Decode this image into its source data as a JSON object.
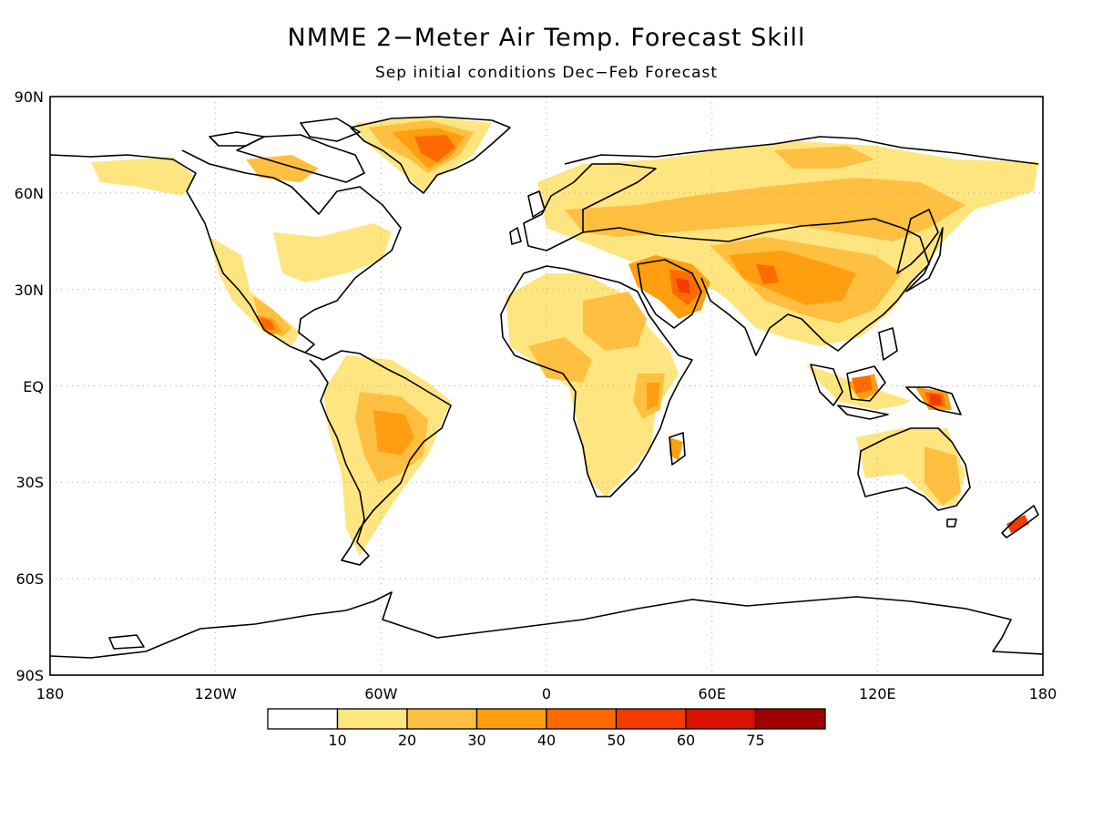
{
  "title": "NMME 2−Meter Air Temp. Forecast Skill",
  "subtitle": "Sep initial conditions   Dec−Feb Forecast",
  "map": {
    "lat_labels": [
      "90N",
      "60N",
      "30N",
      "EQ",
      "30S",
      "60S",
      "90S"
    ],
    "lon_labels": [
      "180",
      "120W",
      "60W",
      "0",
      "60E",
      "120E",
      "180"
    ],
    "grid": "dotted"
  },
  "legend": {
    "thresholds": [
      "10",
      "20",
      "30",
      "40",
      "50",
      "60",
      "75"
    ],
    "colors": [
      "#ffffff",
      "#ffe580",
      "#ffbf40",
      "#ff9f10",
      "#ff6a00",
      "#f33a00",
      "#d81000",
      "#a00000"
    ]
  }
}
